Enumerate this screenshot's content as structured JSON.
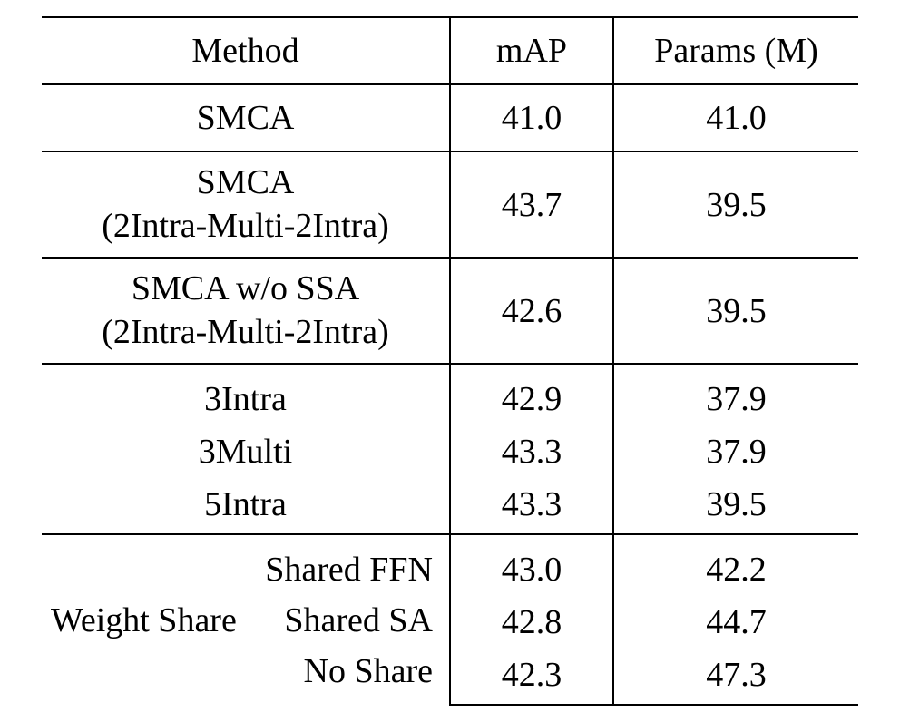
{
  "type": "table",
  "background_color": "#ffffff",
  "text_color": "#000000",
  "border_color": "#000000",
  "font_family": "Times New Roman",
  "font_size_pt": 38,
  "border_width": 2,
  "columns": {
    "method": {
      "label": "Method",
      "width_pct": 50,
      "align": "center"
    },
    "map": {
      "label": "mAP",
      "width_pct": 20,
      "align": "center"
    },
    "params": {
      "label": "Params (M)",
      "width_pct": 30,
      "align": "center"
    }
  },
  "sections": {
    "smca": {
      "method": "SMCA",
      "map": "41.0",
      "params": "41.0"
    },
    "smca_2intra": {
      "method_line1": "SMCA",
      "method_line2": "(2Intra-Multi-2Intra)",
      "map": "43.7",
      "params": "39.5"
    },
    "smca_wo_ssa": {
      "method_line1": "SMCA w/o SSA",
      "method_line2": "(2Intra-Multi-2Intra)",
      "map": "42.6",
      "params": "39.5"
    },
    "intra_group": {
      "rows": [
        {
          "method": "3Intra",
          "map": "42.9",
          "params": "37.9"
        },
        {
          "method": "3Multi",
          "map": "43.3",
          "params": "37.9"
        },
        {
          "method": "5Intra",
          "map": "43.3",
          "params": "39.5"
        }
      ]
    },
    "weight_share": {
      "group_label": "Weight Share",
      "rows": [
        {
          "sub": "Shared FFN",
          "map": "43.0",
          "params": "42.2"
        },
        {
          "sub": "Shared SA",
          "map": "42.8",
          "params": "44.7"
        },
        {
          "sub": "No Share",
          "map": "42.3",
          "params": "47.3"
        }
      ]
    }
  }
}
